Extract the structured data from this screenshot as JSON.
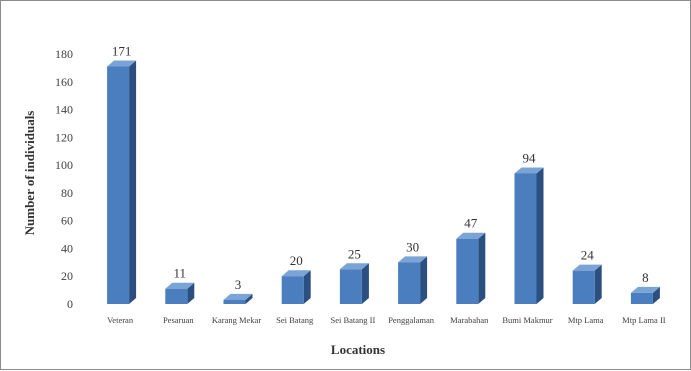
{
  "chart_data": {
    "type": "bar",
    "title": "",
    "xlabel": "Locations",
    "ylabel": "Number  of individuals",
    "categories": [
      "Veteran",
      "Pesaruan",
      "Karang Mekar",
      "Sei Batang",
      "Sei Batang II",
      "Penggalaman",
      "Marabahan",
      "Bumi Makmur",
      "Mtp Lama",
      "Mtp Lama II"
    ],
    "values": [
      171,
      11,
      3,
      20,
      25,
      30,
      47,
      94,
      24,
      8
    ],
    "yticks": [
      "0",
      "20",
      "40",
      "60",
      "80",
      "100",
      "120",
      "140",
      "160",
      "180"
    ],
    "ylim": [
      0,
      180
    ],
    "grid": false,
    "legend": "none",
    "style": "3d-column",
    "colors": {
      "front": "#4a7ebf",
      "side": "#2b4f7e",
      "top": "#7aa3d6"
    }
  }
}
